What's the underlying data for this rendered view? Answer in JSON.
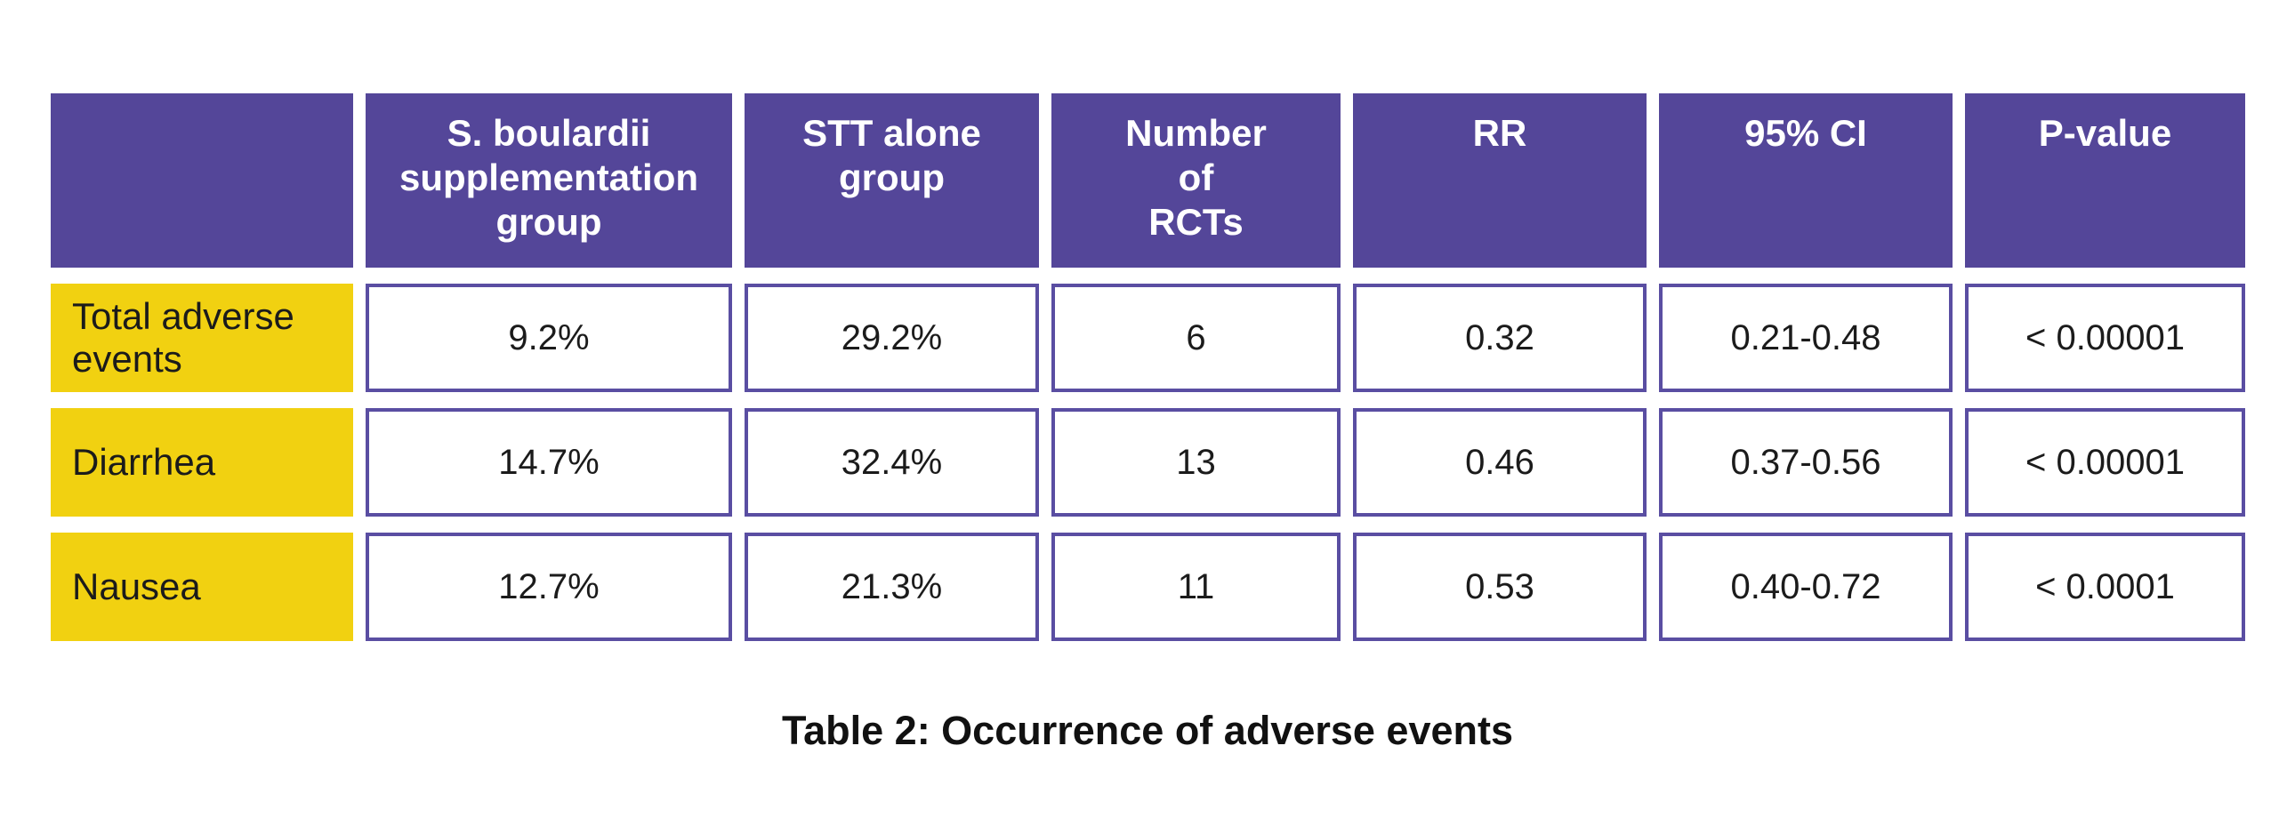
{
  "colors": {
    "header_purple": "#544699",
    "cell_border_purple": "#5A4EA2",
    "row_label_yellow": "#F1D111",
    "header_text": "#FFFFFF",
    "body_text": "#1B1B1B",
    "page_background": "#FFFFFF"
  },
  "table": {
    "header": [
      "",
      "S. boulardii\nsupplementation\ngroup",
      "STT alone\ngroup",
      "Number\nof\nRCTs",
      "RR",
      "95% CI",
      "P-value"
    ],
    "rows": [
      {
        "label": "Total adverse\nevents",
        "values": [
          "9.2%",
          "29.2%",
          "6",
          "0.32",
          "0.21-0.48",
          "< 0.00001"
        ]
      },
      {
        "label": "Diarrhea",
        "values": [
          "14.7%",
          "32.4%",
          "13",
          "0.46",
          "0.37-0.56",
          "< 0.00001"
        ]
      },
      {
        "label": "Nausea",
        "values": [
          "12.7%",
          "21.3%",
          "11",
          "0.53",
          "0.40-0.72",
          "< 0.0001"
        ]
      }
    ]
  },
  "caption": "Table 2: Occurrence of adverse events",
  "chart_data": {
    "type": "table",
    "title": "Table 2: Occurrence of adverse events",
    "columns": [
      "",
      "S. boulardii supplementation group",
      "STT alone group",
      "Number of RCTs",
      "RR",
      "95% CI",
      "P-value"
    ],
    "rows": [
      [
        "Total adverse events",
        "9.2%",
        "29.2%",
        6,
        0.32,
        "0.21-0.48",
        "< 0.00001"
      ],
      [
        "Diarrhea",
        "14.7%",
        "32.4%",
        13,
        0.46,
        "0.37-0.56",
        "< 0.00001"
      ],
      [
        "Nausea",
        "12.7%",
        "21.3%",
        11,
        0.53,
        "0.40-0.72",
        "< 0.0001"
      ]
    ],
    "notes": {
      "header_style": "solid purple blocks, white bold text, top-aligned",
      "row_label_style": "solid yellow blocks, black text, left-aligned",
      "value_cell_style": "white cells with purple border, centered text"
    }
  }
}
